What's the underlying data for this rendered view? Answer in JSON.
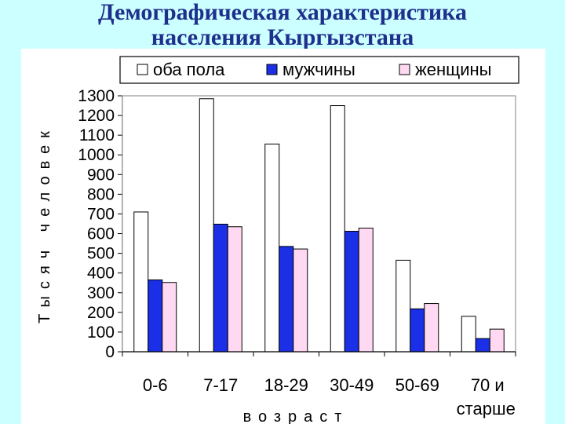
{
  "slide": {
    "title_line1": "Демографическая характеристика",
    "title_line2": "населения Кыргызстана"
  },
  "chart_data": {
    "type": "bar",
    "ylabel": "Тысяч человек",
    "xlabel": "возраст",
    "ylim": [
      0,
      1300
    ],
    "yticks": [
      0,
      100,
      200,
      300,
      400,
      500,
      600,
      700,
      800,
      900,
      1000,
      1100,
      1200,
      1300
    ],
    "grid": false,
    "legend_position": "top",
    "categories": [
      "0-6",
      "7-17",
      "18-29",
      "30-49",
      "50-69",
      "70 и старше"
    ],
    "series": [
      {
        "name": "оба пола",
        "color": "#ffffff",
        "values": [
          710,
          1285,
          1055,
          1250,
          465,
          180
        ]
      },
      {
        "name": "мужчины",
        "color": "#1a2fe6",
        "values": [
          365,
          648,
          535,
          612,
          218,
          67
        ]
      },
      {
        "name": "женщины",
        "color": "#ffd9f2",
        "values": [
          352,
          635,
          522,
          628,
          245,
          115
        ]
      }
    ]
  }
}
